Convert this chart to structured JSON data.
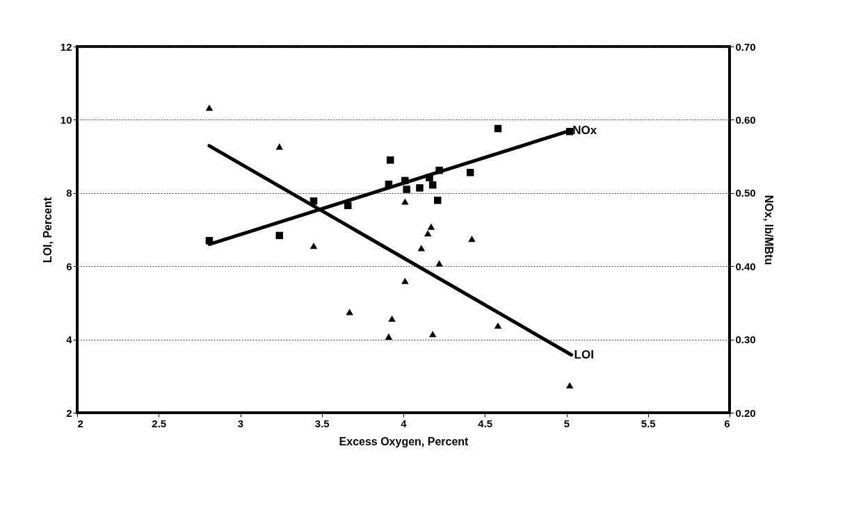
{
  "chart_data": {
    "type": "scatter",
    "xlabel": "Excess Oxygen, Percent",
    "ylabel": "LOI, Percent",
    "y2label": "NOx, lb/MBtu",
    "xlim": [
      2,
      6
    ],
    "xticks": [
      2,
      2.5,
      3,
      3.5,
      4,
      4.5,
      5,
      5.5,
      6
    ],
    "ylim": [
      2,
      12
    ],
    "yticks": [
      2,
      4,
      6,
      8,
      10,
      12
    ],
    "y2lim": [
      0.2,
      0.7
    ],
    "y2ticks": [
      {
        "value": 0.2,
        "label": "0.20"
      },
      {
        "value": 0.3,
        "label": "0.30"
      },
      {
        "value": 0.4,
        "label": "0.40"
      },
      {
        "value": 0.5,
        "label": "0.50"
      },
      {
        "value": 0.6,
        "label": "0.60"
      },
      {
        "value": 0.7,
        "label": "0.70"
      }
    ],
    "grid": "y",
    "legend": false,
    "series": [
      {
        "marker": "triangle",
        "color": "#000000",
        "x": [
          2.81,
          3.24,
          3.45,
          3.67,
          3.91,
          3.93,
          4.01,
          4.17,
          4.15,
          4.42,
          4.11,
          4.22,
          4.01,
          4.58,
          4.18,
          5.02
        ],
        "values": [
          10.33,
          9.27,
          6.56,
          4.75,
          4.08,
          4.57,
          7.77,
          7.08,
          6.9,
          6.75,
          6.5,
          6.08,
          5.6,
          4.38,
          4.15,
          2.75
        ]
      },
      {
        "marker": "square",
        "axis": "y2",
        "color": "#000000",
        "x": [
          2.81,
          3.24,
          3.45,
          3.66,
          3.91,
          3.92,
          4.01,
          4.02,
          4.1,
          4.16,
          4.18,
          4.22,
          4.21,
          4.41,
          4.58,
          5.02
        ],
        "values": [
          0.435,
          0.442,
          0.489,
          0.483,
          0.512,
          0.545,
          0.517,
          0.505,
          0.507,
          0.521,
          0.511,
          0.531,
          0.49,
          0.528,
          0.588,
          0.584
        ]
      },
      {
        "type": "line",
        "name": "LOI",
        "marker": "none",
        "color": "#000000",
        "x": [
          2.81,
          5.03
        ],
        "values": [
          9.29,
          3.58
        ]
      },
      {
        "type": "line",
        "name": "NOx",
        "marker": "none",
        "axis": "y2",
        "color": "#000000",
        "x": [
          2.81,
          5.02
        ],
        "values": [
          0.43,
          0.585
        ]
      }
    ]
  }
}
